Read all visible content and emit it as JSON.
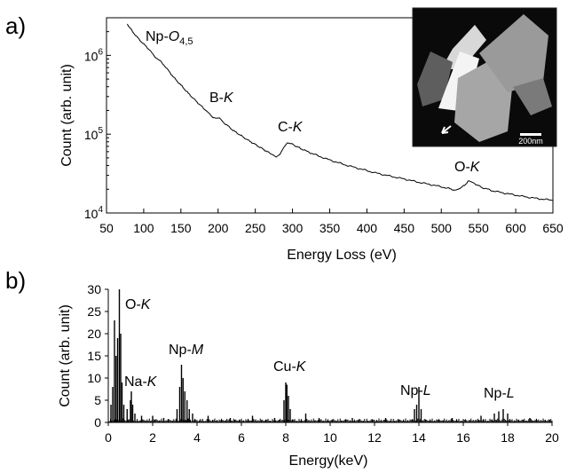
{
  "chart_data": [
    {
      "panel": "a)",
      "type": "line",
      "xlabel": "Energy Loss (eV)",
      "ylabel": "Count (arb. unit)",
      "xlim": [
        50,
        650
      ],
      "ylim": [
        10000,
        3000000
      ],
      "yscale": "log",
      "xticks": [
        50,
        100,
        150,
        200,
        250,
        300,
        350,
        400,
        450,
        500,
        550,
        600,
        650
      ],
      "yticks": [
        {
          "base": "10",
          "exp": "4",
          "value": 10000
        },
        {
          "base": "10",
          "exp": "5",
          "value": 100000
        },
        {
          "base": "10",
          "exp": "6",
          "value": 1000000
        }
      ],
      "grid": false,
      "series": [
        {
          "x": [
            78,
            85,
            95,
            105,
            112,
            118,
            124,
            130,
            140,
            150,
            160,
            170,
            180,
            188,
            193,
            197,
            202,
            210,
            220,
            230,
            240,
            250,
            260,
            270,
            278,
            283,
            288,
            293,
            298,
            305,
            315,
            330,
            350,
            370,
            390,
            410,
            430,
            450,
            470,
            490,
            510,
            520,
            525,
            530,
            537,
            545,
            555,
            570,
            590,
            610,
            630,
            650
          ],
          "y": [
            2500000,
            2000000,
            1550000,
            1250000,
            1050000,
            900000,
            820000,
            700000,
            530000,
            420000,
            330000,
            265000,
            215000,
            185000,
            163000,
            158000,
            160000,
            135000,
            112000,
            97000,
            84000,
            74000,
            65000,
            57000,
            52000,
            56000,
            68000,
            78000,
            76000,
            70000,
            63000,
            55000,
            47000,
            41000,
            36500,
            32500,
            29500,
            27000,
            24500,
            22500,
            20500,
            19200,
            20000,
            22000,
            25500,
            23500,
            21000,
            19000,
            17500,
            16200,
            15200,
            14500
          ]
        }
      ],
      "annotations": [
        {
          "base": "Np-",
          "italic": "O",
          "sub": "4,5"
        },
        {
          "base": "B-",
          "italic": "K"
        },
        {
          "base": "C-",
          "italic": "K"
        },
        {
          "base": "O-",
          "italic": "K"
        }
      ],
      "inset": {
        "scalebar": "200nm"
      }
    },
    {
      "panel": "b)",
      "type": "bar",
      "xlabel": "Energy(keV)",
      "ylabel": "Count (arb. unit)",
      "xlim": [
        0,
        20
      ],
      "ylim": [
        0,
        30
      ],
      "xticks": [
        0,
        2,
        4,
        6,
        8,
        10,
        12,
        14,
        16,
        18,
        20
      ],
      "yticks": [
        0,
        5,
        10,
        15,
        20,
        25,
        30
      ],
      "grid": false,
      "peaks": [
        {
          "x": 0.12,
          "y": 4
        },
        {
          "x": 0.2,
          "y": 8
        },
        {
          "x": 0.28,
          "y": 23
        },
        {
          "x": 0.35,
          "y": 15
        },
        {
          "x": 0.42,
          "y": 19
        },
        {
          "x": 0.5,
          "y": 30
        },
        {
          "x": 0.56,
          "y": 20
        },
        {
          "x": 0.62,
          "y": 9
        },
        {
          "x": 0.7,
          "y": 4
        },
        {
          "x": 0.85,
          "y": 3
        },
        {
          "x": 1.0,
          "y": 5
        },
        {
          "x": 1.04,
          "y": 7
        },
        {
          "x": 1.1,
          "y": 4
        },
        {
          "x": 1.2,
          "y": 2
        },
        {
          "x": 1.5,
          "y": 1.5
        },
        {
          "x": 2.0,
          "y": 1.5
        },
        {
          "x": 2.5,
          "y": 1
        },
        {
          "x": 3.1,
          "y": 3
        },
        {
          "x": 3.22,
          "y": 8
        },
        {
          "x": 3.3,
          "y": 13
        },
        {
          "x": 3.37,
          "y": 10
        },
        {
          "x": 3.45,
          "y": 7
        },
        {
          "x": 3.55,
          "y": 5
        },
        {
          "x": 3.65,
          "y": 3
        },
        {
          "x": 3.8,
          "y": 2
        },
        {
          "x": 4.5,
          "y": 1.5
        },
        {
          "x": 5.5,
          "y": 1
        },
        {
          "x": 6.5,
          "y": 1.5
        },
        {
          "x": 7.5,
          "y": 1
        },
        {
          "x": 7.92,
          "y": 5
        },
        {
          "x": 8.0,
          "y": 9
        },
        {
          "x": 8.05,
          "y": 8.5
        },
        {
          "x": 8.12,
          "y": 6
        },
        {
          "x": 8.2,
          "y": 3
        },
        {
          "x": 8.9,
          "y": 2
        },
        {
          "x": 9.5,
          "y": 1
        },
        {
          "x": 11.0,
          "y": 1
        },
        {
          "x": 12.5,
          "y": 1
        },
        {
          "x": 13.8,
          "y": 3
        },
        {
          "x": 13.9,
          "y": 4
        },
        {
          "x": 14.0,
          "y": 8
        },
        {
          "x": 14.1,
          "y": 3
        },
        {
          "x": 15.5,
          "y": 1
        },
        {
          "x": 16.8,
          "y": 1.5
        },
        {
          "x": 17.4,
          "y": 2
        },
        {
          "x": 17.6,
          "y": 2.5
        },
        {
          "x": 17.8,
          "y": 3
        },
        {
          "x": 18.0,
          "y": 2
        },
        {
          "x": 19.0,
          "y": 1
        }
      ],
      "annotations": [
        {
          "base": "O-",
          "italic": "K"
        },
        {
          "base": "Na-",
          "italic": "K"
        },
        {
          "base": "Np-",
          "italic": "M"
        },
        {
          "base": "Cu-",
          "italic": "K"
        },
        {
          "base": "Np-",
          "italic": "L"
        },
        {
          "base": "Np-",
          "italic": "L"
        }
      ]
    }
  ]
}
